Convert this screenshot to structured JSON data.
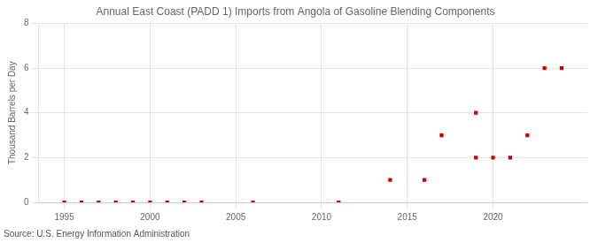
{
  "chart_data": {
    "type": "scatter",
    "title": "Annual East Coast (PADD 1) Imports from Angola of Gasoline Blending Components",
    "ylabel": "Thousand Barrels per Day",
    "source": "Source: U.S. Energy Information Administration",
    "x": [
      1995,
      1996,
      1997,
      1998,
      1999,
      2000,
      2001,
      2002,
      2003,
      2006,
      2011,
      2014,
      2016,
      2017,
      2019,
      2019,
      2020,
      2021,
      2022,
      2023,
      2024
    ],
    "values": [
      0,
      0,
      0,
      0,
      0,
      0,
      0,
      0,
      0,
      0,
      0,
      1,
      1,
      3,
      4,
      2,
      2,
      2,
      3,
      6,
      6
    ],
    "color": "#cc0000",
    "marker": "square",
    "xlim": [
      1993.5,
      2025.5
    ],
    "ylim": [
      0,
      8
    ],
    "xticks": [
      1995,
      2000,
      2005,
      2010,
      2015,
      2020
    ],
    "yticks": [
      0,
      2,
      4,
      6,
      8
    ],
    "grid": true
  }
}
